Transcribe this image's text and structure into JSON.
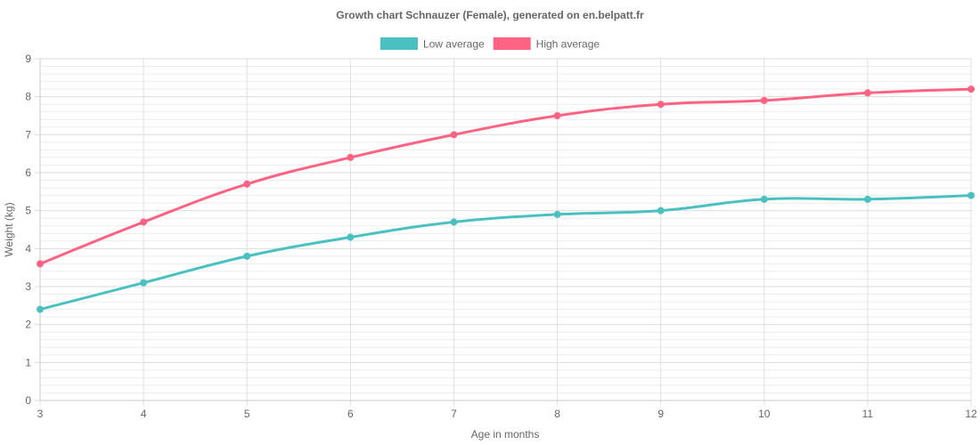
{
  "chart_data": {
    "type": "line",
    "title": "Growth chart Schnauzer (Female), generated on en.belpatt.fr",
    "xlabel": "Age in months",
    "ylabel": "Weight (kg)",
    "x": [
      3,
      4,
      5,
      6,
      7,
      8,
      9,
      10,
      11,
      12
    ],
    "xlim": [
      3,
      12
    ],
    "ylim": [
      0,
      9
    ],
    "y_ticks": [
      0,
      1,
      2,
      3,
      4,
      5,
      6,
      7,
      8,
      9
    ],
    "grid": true,
    "legend_position": "top-center",
    "series": [
      {
        "name": "Low average",
        "color": "#4bc0c0",
        "values": [
          2.4,
          3.1,
          3.8,
          4.3,
          4.7,
          4.9,
          5.0,
          5.3,
          5.3,
          5.4
        ]
      },
      {
        "name": "High average",
        "color": "#ff6384",
        "values": [
          3.6,
          4.7,
          5.7,
          6.4,
          7.0,
          7.5,
          7.8,
          7.9,
          8.1,
          8.2
        ]
      }
    ]
  }
}
